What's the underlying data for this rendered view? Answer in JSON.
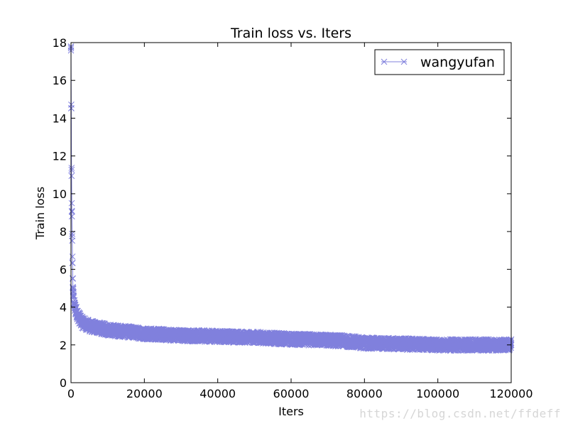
{
  "chart_data": {
    "type": "line",
    "title": "Train loss  vs. Iters",
    "xlabel": "Iters",
    "ylabel": "Train loss",
    "xlim": [
      0,
      120000
    ],
    "ylim": [
      0,
      18
    ],
    "xticks": [
      0,
      20000,
      40000,
      60000,
      80000,
      100000,
      120000
    ],
    "yticks": [
      0,
      2,
      4,
      6,
      8,
      10,
      12,
      14,
      16,
      18
    ],
    "grid": false,
    "legend_position": "top-right",
    "marker": "x",
    "series": [
      {
        "name": "wangyufan",
        "color": "#8080dd",
        "x": [
          0,
          200,
          500,
          1000,
          2000,
          3000,
          5000,
          10000,
          15000,
          20000,
          30000,
          40000,
          50000,
          60000,
          70000,
          75000,
          80000,
          90000,
          100000,
          110000,
          120000
        ],
        "y": [
          17.7,
          9.5,
          5.0,
          4.0,
          3.5,
          3.2,
          3.0,
          2.8,
          2.7,
          2.6,
          2.5,
          2.45,
          2.4,
          2.3,
          2.25,
          2.2,
          2.1,
          2.05,
          2.0,
          2.0,
          2.0
        ],
        "band": 0.3
      }
    ]
  },
  "watermark": "https://blog.csdn.net/ffdeff"
}
